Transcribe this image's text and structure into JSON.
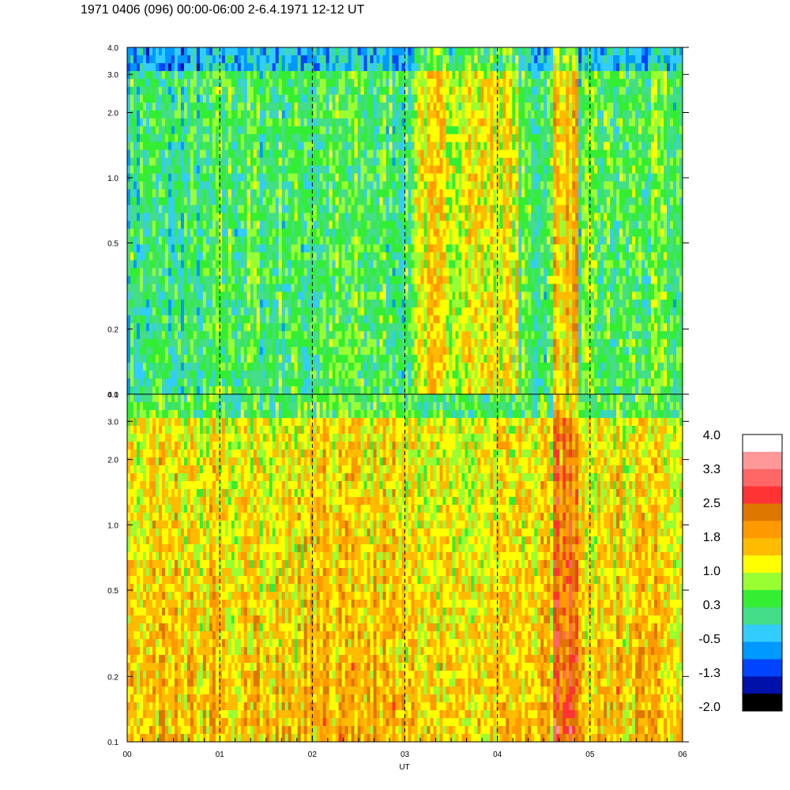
{
  "title": "1971 0406 (096) 00:00-06:00 2-6.4.1971 12-12 UT",
  "chart_data": {
    "type": "heatmap",
    "xlabel": "UT",
    "x_ticks": [
      "00",
      "01",
      "02",
      "03",
      "04",
      "05",
      "06"
    ],
    "xlim": [
      0,
      6
    ],
    "y_scale": "log",
    "ylim": [
      0.1,
      4.0
    ],
    "y_ticks": [
      {
        "value": 0.1,
        "label": "0.1"
      },
      {
        "value": 0.2,
        "label": "0.2"
      },
      {
        "value": 0.5,
        "label": "0.5"
      },
      {
        "value": 1.0,
        "label": "1.0"
      },
      {
        "value": 2.0,
        "label": "2.0"
      },
      {
        "value": 3.0,
        "label": "3.0"
      },
      {
        "value": 4.0,
        "label": "4.0"
      }
    ],
    "panels": [
      {
        "name": "upper",
        "dominant_level": 0.3
      },
      {
        "name": "lower",
        "dominant_level": 1.4
      }
    ],
    "colorbar": {
      "labels": [
        "4.0",
        "3.3",
        "2.5",
        "1.8",
        "1.0",
        "0.3",
        "-0.5",
        "-1.3",
        "-2.0"
      ],
      "colors": [
        "#ffffff",
        "#ff9999",
        "#ff6666",
        "#ff3333",
        "#dd7700",
        "#ff9900",
        "#ffbb00",
        "#ffff00",
        "#99ff33",
        "#33ee33",
        "#44dd88",
        "#33ccff",
        "#0099ff",
        "#0044ff",
        "#0011aa",
        "#000000"
      ]
    }
  }
}
